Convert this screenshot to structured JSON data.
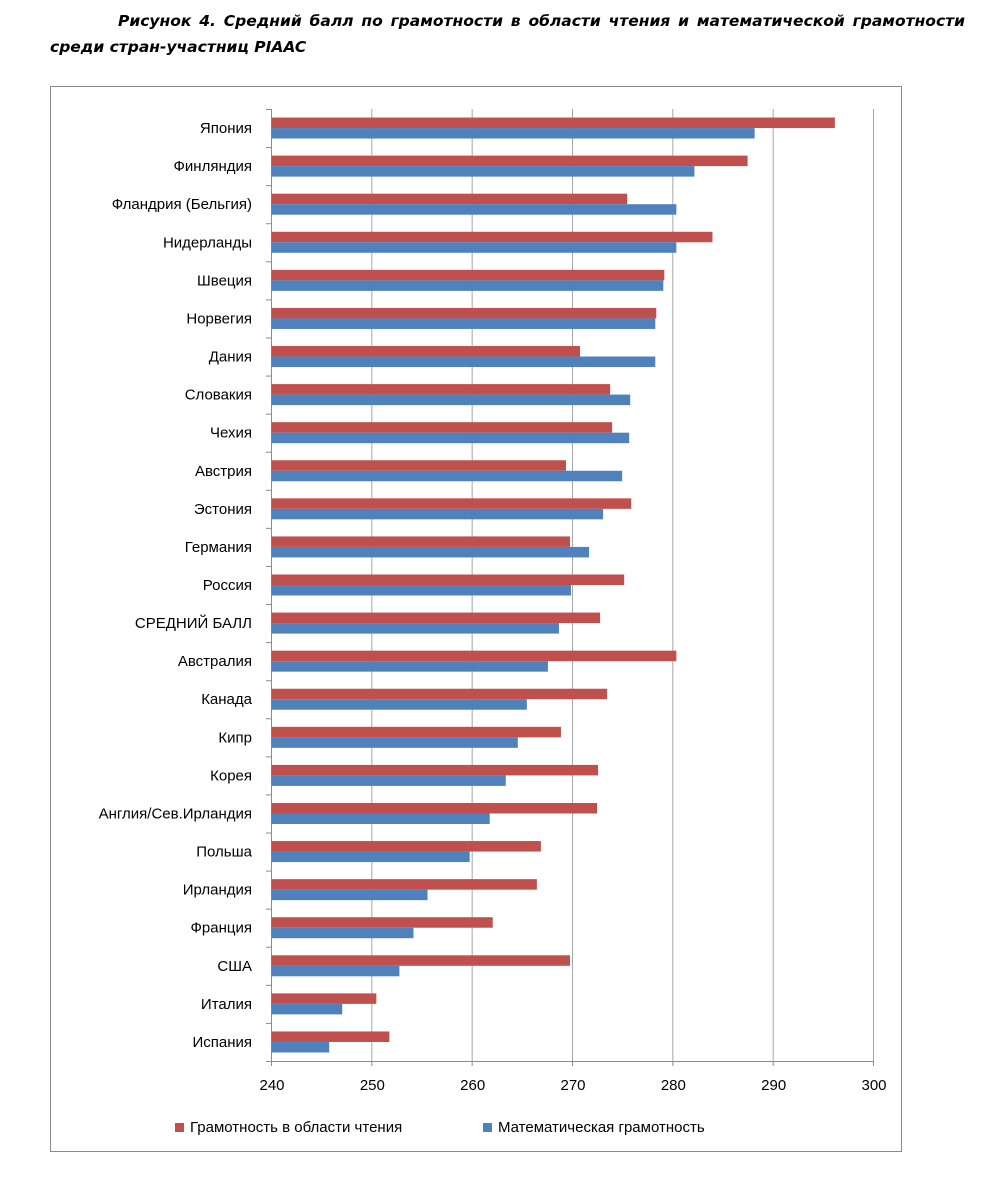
{
  "caption": "Рисунок 4. Средний балл по грамотности в области чтения и математической грамотности среди стран-участниц PIAAC",
  "colors": {
    "reading": "#C0504D",
    "math": "#4F81BD",
    "grid": "#a6a6a6",
    "axis": "#8c8c8c"
  },
  "chart_data": {
    "type": "bar",
    "orientation": "horizontal",
    "title": "",
    "xlabel": "",
    "ylabel": "",
    "xlim": [
      240,
      300
    ],
    "xticks": [
      240,
      250,
      260,
      270,
      280,
      290,
      300
    ],
    "grid": true,
    "legend_position": "bottom",
    "categories": [
      "Япония",
      "Финляндия",
      "Фландрия (Бельгия)",
      "Нидерланды",
      "Швеция",
      "Норвегия",
      "Дания",
      "Словакия",
      "Чехия",
      "Австрия",
      "Эстония",
      "Германия",
      "Россия",
      "СРЕДНИЙ БАЛЛ",
      "Австралия",
      "Канада",
      "Кипр",
      "Корея",
      "Англия/Сев.Ирландия",
      "Польша",
      "Ирландия",
      "Франция",
      "США",
      "Италия",
      "Испания"
    ],
    "series": [
      {
        "name": "Грамотность в области чтения",
        "values": [
          296.2,
          287.5,
          275.5,
          284.0,
          279.2,
          278.4,
          270.8,
          273.8,
          274.0,
          269.4,
          275.9,
          269.8,
          275.2,
          272.8,
          280.4,
          273.5,
          268.9,
          272.6,
          272.5,
          266.9,
          266.5,
          262.1,
          269.8,
          250.5,
          251.8
        ]
      },
      {
        "name": "Математическая грамотность",
        "values": [
          288.2,
          282.2,
          280.4,
          280.4,
          279.1,
          278.3,
          278.3,
          275.8,
          275.7,
          275.0,
          273.1,
          271.7,
          269.9,
          268.7,
          267.6,
          265.5,
          264.6,
          263.4,
          261.8,
          259.8,
          255.6,
          254.2,
          252.8,
          247.1,
          245.8
        ]
      }
    ]
  }
}
